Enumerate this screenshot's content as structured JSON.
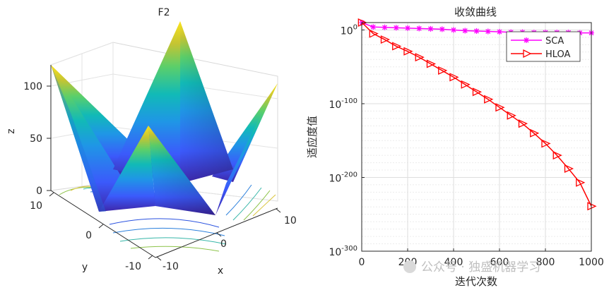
{
  "chart_data": [
    {
      "type": "surface",
      "title": "F2",
      "xlabel": "x",
      "ylabel": "y",
      "zlabel": "z",
      "x_ticks": [
        "-10",
        "0",
        "10"
      ],
      "y_ticks": [
        "10",
        "0",
        "-10"
      ],
      "z_ticks": [
        "0",
        "50",
        "100"
      ],
      "x_range": [
        -10,
        10
      ],
      "y_range": [
        -10,
        10
      ],
      "z_range": [
        0,
        120
      ],
      "colormap": [
        "#3e26a8",
        "#3b5afb",
        "#1f96e6",
        "#11bab7",
        "#5bcf6a",
        "#c4c433",
        "#fbe31c"
      ]
    },
    {
      "type": "line",
      "title": "收敛曲线",
      "xlabel": "迭代次数",
      "ylabel": "适应度值",
      "yscale": "log",
      "xlim": [
        0,
        1000
      ],
      "ylim_exponent": [
        -300,
        10
      ],
      "x_ticks": [
        "0",
        "200",
        "400",
        "600",
        "800",
        "1000"
      ],
      "y_tick_base": [
        "10",
        "10",
        "10",
        "10"
      ],
      "y_tick_exponents": [
        "0",
        "-100",
        "-200",
        "-300"
      ],
      "legend_position": "top-right",
      "series": [
        {
          "name": "SCA",
          "color": "#ff00ff",
          "marker": "asterisk",
          "x": [
            1,
            50,
            100,
            150,
            200,
            250,
            300,
            350,
            400,
            450,
            500,
            550,
            600,
            650,
            700,
            750,
            800,
            850,
            900,
            950,
            1000
          ],
          "log10_y": [
            10,
            4,
            3.5,
            3,
            2.5,
            2,
            1.5,
            1,
            0,
            -1,
            -1.5,
            -2,
            -2.5,
            -3,
            -3,
            -3.5,
            -3.5,
            -3.5,
            -3.5,
            -4,
            -4
          ]
        },
        {
          "name": "HLOA",
          "color": "#ff0000",
          "marker": "triangle-right",
          "x": [
            1,
            50,
            100,
            150,
            200,
            250,
            300,
            350,
            400,
            450,
            500,
            550,
            600,
            650,
            700,
            750,
            800,
            850,
            900,
            950,
            1000
          ],
          "log10_y": [
            10,
            -5,
            -13,
            -22,
            -29,
            -37,
            -46,
            -55,
            -64,
            -74,
            -84,
            -94,
            -105,
            -116,
            -127,
            -140,
            -154,
            -170,
            -188,
            -207,
            -239
          ]
        }
      ]
    }
  ],
  "watermark": {
    "text": "公众号 · 独盛机器学习"
  }
}
